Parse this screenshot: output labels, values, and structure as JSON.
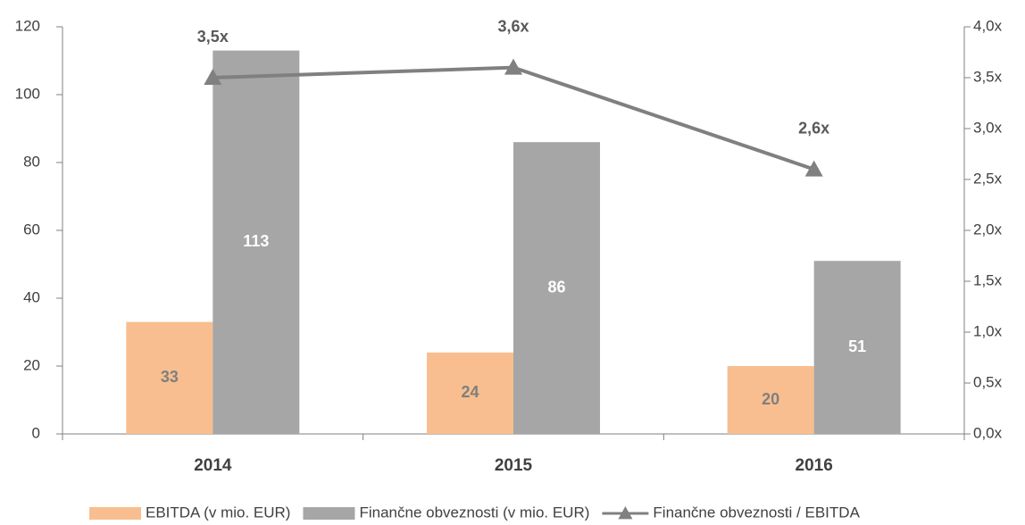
{
  "chart_data": {
    "type": "bar",
    "categories": [
      "2014",
      "2015",
      "2016"
    ],
    "series": [
      {
        "name": "EBITDA (v mio. EUR)",
        "color": "#f8be8f",
        "values": [
          33,
          24,
          20
        ]
      },
      {
        "name": "Finančne obveznosti (v mio. EUR)",
        "color": "#a6a6a6",
        "values": [
          113,
          86,
          51
        ]
      },
      {
        "name": "Finančne obveznosti / EBITDA",
        "type": "line",
        "axis": "y2",
        "color": "#808080",
        "values": [
          3.5,
          3.6,
          2.6
        ],
        "value_labels": [
          "3,5x",
          "3,6x",
          "2,6x"
        ]
      }
    ],
    "ylim": [
      0,
      120
    ],
    "yticks": [
      0,
      20,
      40,
      60,
      80,
      100,
      120
    ],
    "y2lim": [
      0,
      4
    ],
    "y2ticks": [
      {
        "value": 0,
        "label": "0,0x"
      },
      {
        "value": 0.5,
        "label": "0,5x"
      },
      {
        "value": 1,
        "label": "1,0x"
      },
      {
        "value": 1.5,
        "label": "1,5x"
      },
      {
        "value": 2,
        "label": "2,0x"
      },
      {
        "value": 2.5,
        "label": "2,5x"
      },
      {
        "value": 3,
        "label": "3,0x"
      },
      {
        "value": 3.5,
        "label": "3,5x"
      },
      {
        "value": 4,
        "label": "4,0x"
      }
    ],
    "legend": "bottom"
  }
}
